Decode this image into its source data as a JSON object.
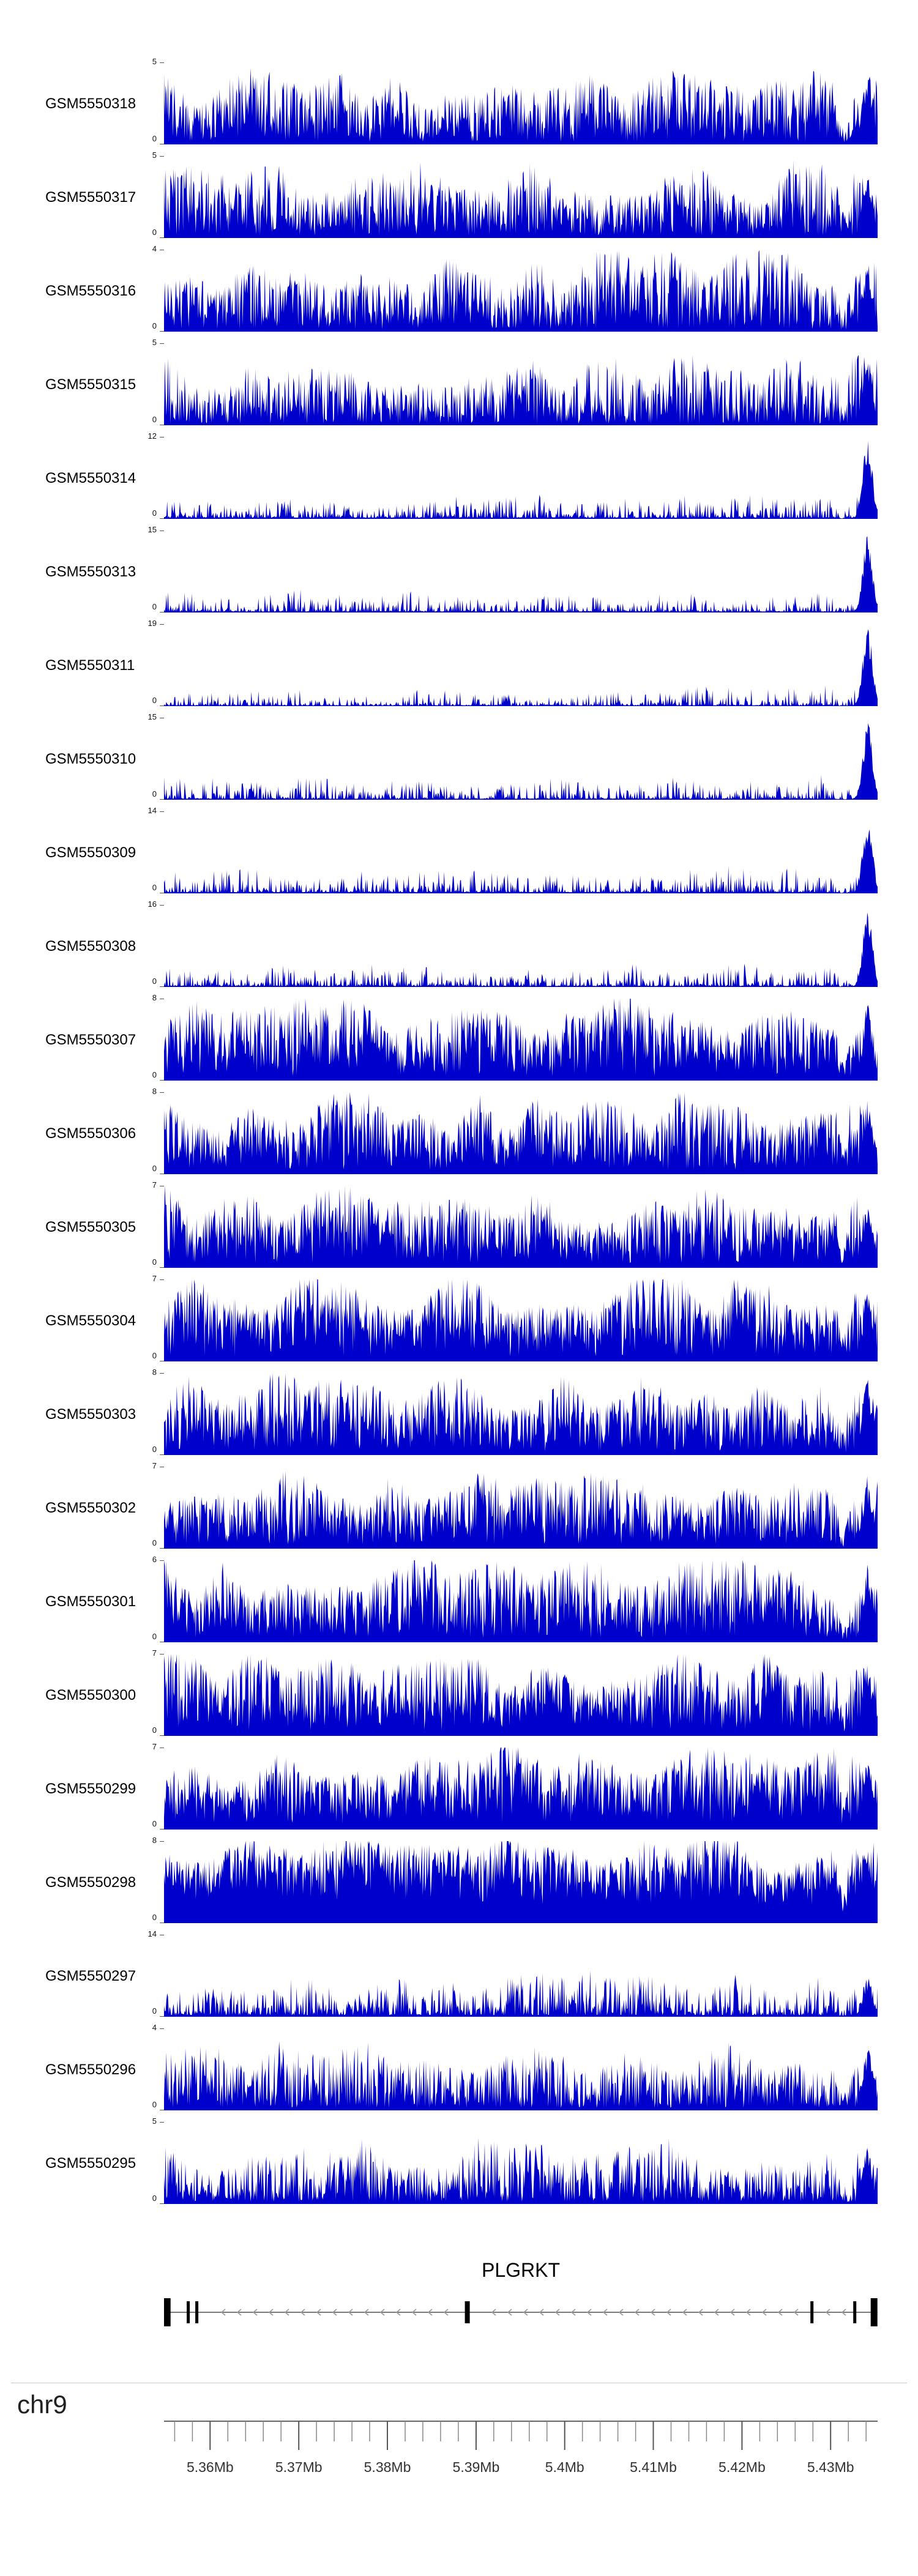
{
  "figure": {
    "kind": "genome-browser-coverage-figure",
    "background": "#FFFFFF"
  },
  "chart_data": {
    "type": "area",
    "description": "23 stacked genomic coverage signal tracks (solid blue filled area plots, one per GSM sample), a PLGRKT gene-model track on the minus strand, and a chr9 genome coordinate axis from ~5.355Mb to ~5.435Mb",
    "signal_color": "#0000CC",
    "region": {
      "chromosome": "chr9",
      "start_mb": 5.3548,
      "end_mb": 5.4353
    },
    "tracks": [
      {
        "label": "GSM5550318",
        "ymin": 0,
        "ymax": 5,
        "seed": 11,
        "base": 0.03,
        "amp": 0.85,
        "tail": 1.0,
        "right_peak": 0.95
      },
      {
        "label": "GSM5550317",
        "ymin": 0,
        "ymax": 5,
        "seed": 22,
        "base": 0.03,
        "amp": 0.85,
        "tail": 1.0,
        "right_peak": 0.85
      },
      {
        "label": "GSM5550316",
        "ymin": 0,
        "ymax": 4,
        "seed": 33,
        "base": 0.03,
        "amp": 0.9,
        "tail": 0.95,
        "right_peak": 0.9
      },
      {
        "label": "GSM5550315",
        "ymin": 0,
        "ymax": 5,
        "seed": 44,
        "base": 0.02,
        "amp": 0.8,
        "tail": 1.25,
        "right_peak": 0.85
      },
      {
        "label": "GSM5550314",
        "ymin": 0,
        "ymax": 12,
        "seed": 55,
        "base": 0.015,
        "amp": 0.3,
        "tail": 3.8,
        "right_peak": 1.0
      },
      {
        "label": "GSM5550313",
        "ymin": 0,
        "ymax": 15,
        "seed": 66,
        "base": 0.012,
        "amp": 0.26,
        "tail": 4.2,
        "right_peak": 1.0
      },
      {
        "label": "GSM5550311",
        "ymin": 0,
        "ymax": 19,
        "seed": 77,
        "base": 0.01,
        "amp": 0.22,
        "tail": 4.6,
        "right_peak": 1.0
      },
      {
        "label": "GSM5550310",
        "ymin": 0,
        "ymax": 15,
        "seed": 88,
        "base": 0.012,
        "amp": 0.26,
        "tail": 4.2,
        "right_peak": 1.0
      },
      {
        "label": "GSM5550309",
        "ymin": 0,
        "ymax": 14,
        "seed": 99,
        "base": 0.014,
        "amp": 0.3,
        "tail": 3.8,
        "right_peak": 1.0
      },
      {
        "label": "GSM5550308",
        "ymin": 0,
        "ymax": 16,
        "seed": 110,
        "base": 0.012,
        "amp": 0.28,
        "tail": 4.0,
        "right_peak": 1.0
      },
      {
        "label": "GSM5550307",
        "ymin": 0,
        "ymax": 8,
        "seed": 121,
        "base": 0.05,
        "amp": 0.95,
        "tail": 0.8,
        "right_peak": 1.0
      },
      {
        "label": "GSM5550306",
        "ymin": 0,
        "ymax": 8,
        "seed": 132,
        "base": 0.05,
        "amp": 0.9,
        "tail": 0.85,
        "right_peak": 0.9
      },
      {
        "label": "GSM5550305",
        "ymin": 0,
        "ymax": 7,
        "seed": 143,
        "base": 0.05,
        "amp": 0.95,
        "tail": 0.8,
        "right_peak": 0.9
      },
      {
        "label": "GSM5550304",
        "ymin": 0,
        "ymax": 7,
        "seed": 154,
        "base": 0.06,
        "amp": 0.95,
        "tail": 0.75,
        "right_peak": 0.9
      },
      {
        "label": "GSM5550303",
        "ymin": 0,
        "ymax": 8,
        "seed": 165,
        "base": 0.05,
        "amp": 0.9,
        "tail": 0.85,
        "right_peak": 0.95
      },
      {
        "label": "GSM5550302",
        "ymin": 0,
        "ymax": 7,
        "seed": 176,
        "base": 0.05,
        "amp": 0.9,
        "tail": 0.85,
        "right_peak": 0.9
      },
      {
        "label": "GSM5550301",
        "ymin": 0,
        "ymax": 6,
        "seed": 187,
        "base": 0.05,
        "amp": 0.95,
        "tail": 0.8,
        "right_peak": 0.95
      },
      {
        "label": "GSM5550300",
        "ymin": 0,
        "ymax": 7,
        "seed": 198,
        "base": 0.06,
        "amp": 0.95,
        "tail": 0.75,
        "right_peak": 0.95
      },
      {
        "label": "GSM5550299",
        "ymin": 0,
        "ymax": 7,
        "seed": 209,
        "base": 0.07,
        "amp": 0.95,
        "tail": 0.7,
        "right_peak": 0.9
      },
      {
        "label": "GSM5550298",
        "ymin": 0,
        "ymax": 8,
        "seed": 220,
        "base": 0.22,
        "amp": 0.85,
        "tail": 0.6,
        "right_peak": 0.9
      },
      {
        "label": "GSM5550297",
        "ymin": 0,
        "ymax": 14,
        "seed": 231,
        "base": 0.02,
        "amp": 0.5,
        "tail": 2.2,
        "right_peak": 0.5
      },
      {
        "label": "GSM5550296",
        "ymin": 0,
        "ymax": 4,
        "seed": 242,
        "base": 0.03,
        "amp": 0.75,
        "tail": 1.2,
        "right_peak": 0.8
      },
      {
        "label": "GSM5550295",
        "ymin": 0,
        "ymax": 5,
        "seed": 253,
        "base": 0.03,
        "amp": 0.7,
        "tail": 1.35,
        "right_peak": 0.7
      }
    ],
    "gene_track": {
      "title": "PLGRKT",
      "strand": "-",
      "line_color": "#7a7a7a",
      "arrow_color": "#9a9a9a",
      "exon_color": "#000000",
      "exons": [
        {
          "f": 0.004,
          "w": 12,
          "tall": true
        },
        {
          "f": 0.034,
          "w": 5,
          "tall": false
        },
        {
          "f": 0.046,
          "w": 5,
          "tall": false
        },
        {
          "f": 0.425,
          "w": 8,
          "tall": false
        },
        {
          "f": 0.908,
          "w": 5,
          "tall": false
        },
        {
          "f": 0.968,
          "w": 5,
          "tall": false
        },
        {
          "f": 0.995,
          "w": 11,
          "tall": true
        }
      ]
    },
    "axis": {
      "chromosome_label": "chr9",
      "minor_step_mb": 0.002,
      "major_ticks": [
        {
          "mb": 5.36,
          "label": "5.36Mb"
        },
        {
          "mb": 5.37,
          "label": "5.37Mb"
        },
        {
          "mb": 5.38,
          "label": "5.38Mb"
        },
        {
          "mb": 5.39,
          "label": "5.39Mb"
        },
        {
          "mb": 5.4,
          "label": "5.4Mb"
        },
        {
          "mb": 5.41,
          "label": "5.41Mb"
        },
        {
          "mb": 5.42,
          "label": "5.42Mb"
        },
        {
          "mb": 5.43,
          "label": "5.43Mb"
        }
      ]
    }
  }
}
